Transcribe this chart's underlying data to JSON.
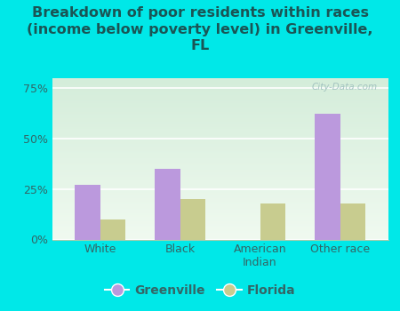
{
  "title": "Breakdown of poor residents within races\n(income below poverty level) in Greenville,\nFL",
  "categories": [
    "White",
    "Black",
    "American\nIndian",
    "Other race"
  ],
  "greenville_values": [
    27,
    35,
    0,
    62
  ],
  "florida_values": [
    10,
    20,
    18,
    18
  ],
  "greenville_color": "#bb99dd",
  "florida_color": "#c8cc8f",
  "background_color": "#00e8e8",
  "plot_bg_color": "#eaf5e2",
  "title_color": "#1a5555",
  "tick_color": "#336666",
  "ylim": [
    0,
    80
  ],
  "yticks": [
    0,
    25,
    50,
    75
  ],
  "ytick_labels": [
    "0%",
    "25%",
    "50%",
    "75%"
  ],
  "bar_width": 0.32,
  "title_fontsize": 11.5,
  "tick_fontsize": 9,
  "legend_fontsize": 10,
  "watermark": "City-Data.com"
}
